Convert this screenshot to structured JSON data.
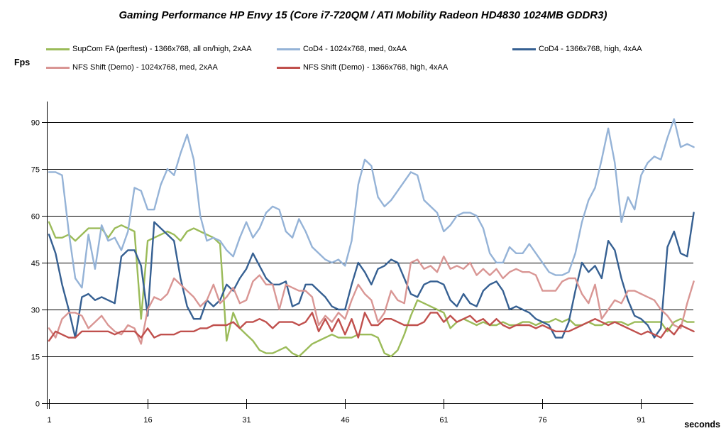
{
  "title": "Gaming Performance HP Envy 15 (Core i7-720QM / ATI Mobility Radeon HD4830 1024MB GDDR3)",
  "y_axis_label": "Fps",
  "x_axis_label": "seconds",
  "legend": {
    "entries": [
      {
        "label": "SupCom FA (perftest) - 1366x768, all on/high, 2xAA",
        "color": "#9BBB59"
      },
      {
        "label": "CoD4 - 1024x768,  med, 0xAA",
        "color": "#95B3D7"
      },
      {
        "label": "CoD4 - 1366x768,  high, 4xAA",
        "color": "#366092"
      },
      {
        "label": "NFS Shift (Demo) - 1024x768,  med, 2xAA",
        "color": "#D99694"
      },
      {
        "label": "NFS Shift (Demo) - 1366x768,  high, 4xAA",
        "color": "#C0504D"
      }
    ]
  },
  "chart_data": {
    "type": "line",
    "title": "Gaming Performance HP Envy 15 (Core i7-720QM / ATI Mobility Radeon HD4830 1024MB GDDR3)",
    "xlabel": "seconds",
    "ylabel": "Fps",
    "x_start": 1,
    "x_step": 1,
    "x_ticks": [
      1,
      16,
      31,
      46,
      61,
      76,
      91
    ],
    "y_ticks": [
      0,
      15,
      30,
      45,
      60,
      75,
      90
    ],
    "ylim": [
      0,
      96
    ],
    "grid": "horizontal",
    "legend_position": "top",
    "series": [
      {
        "name": "SupCom FA (perftest) - 1366x768, all on/high, 2xAA",
        "color": "#9BBB59",
        "values": [
          58,
          53,
          53,
          54,
          52,
          54,
          56,
          56,
          56,
          53,
          56,
          57,
          56,
          55,
          27,
          52,
          53,
          54,
          55,
          54,
          52,
          55,
          56,
          55,
          54,
          53,
          51,
          20,
          29,
          24,
          22,
          20,
          17,
          16,
          16,
          17,
          18,
          16,
          15,
          17,
          19,
          20,
          21,
          22,
          21,
          21,
          21,
          22,
          22,
          22,
          21,
          16,
          15,
          17,
          22,
          28,
          33,
          32,
          31,
          30,
          29,
          24,
          26,
          27,
          26,
          25,
          26,
          25,
          25,
          26,
          25,
          25,
          26,
          26,
          25,
          26,
          26,
          27,
          26,
          27,
          25,
          25,
          26,
          25,
          25,
          26,
          26,
          26,
          25,
          26,
          26,
          26,
          26,
          26,
          23,
          26,
          27,
          26,
          26
        ]
      },
      {
        "name": "CoD4 - 1024x768, med, 0xAA",
        "color": "#95B3D7",
        "values": [
          74,
          74,
          73,
          55,
          40,
          37,
          54,
          43,
          57,
          52,
          53,
          49,
          55,
          69,
          68,
          62,
          62,
          70,
          75,
          73,
          80,
          86,
          78,
          60,
          52,
          53,
          52,
          49,
          47,
          53,
          58,
          53,
          56,
          61,
          63,
          62,
          55,
          53,
          59,
          55,
          50,
          48,
          46,
          45,
          46,
          44,
          52,
          70,
          78,
          76,
          66,
          63,
          65,
          68,
          71,
          74,
          73,
          65,
          63,
          61,
          55,
          57,
          60,
          61,
          61,
          60,
          56,
          48,
          45,
          45,
          50,
          48,
          48,
          51,
          48,
          45,
          42,
          41,
          41,
          42,
          48,
          58,
          65,
          69,
          78,
          88,
          77,
          58,
          66,
          62,
          73,
          77,
          79,
          78,
          85,
          91,
          82,
          83,
          82
        ]
      },
      {
        "name": "CoD4 - 1366x768, high, 4xAA",
        "color": "#366092",
        "values": [
          54,
          48,
          38,
          30,
          21,
          34,
          35,
          33,
          34,
          33,
          32,
          47,
          49,
          49,
          44,
          28,
          58,
          56,
          54,
          52,
          40,
          31,
          27,
          27,
          33,
          31,
          33,
          38,
          36,
          40,
          43,
          48,
          44,
          40,
          38,
          38,
          39,
          31,
          32,
          38,
          38,
          36,
          34,
          31,
          30,
          30,
          38,
          45,
          42,
          38,
          43,
          44,
          46,
          45,
          40,
          35,
          34,
          38,
          39,
          39,
          38,
          33,
          31,
          35,
          32,
          31,
          36,
          38,
          39,
          36,
          30,
          31,
          30,
          29,
          27,
          26,
          25,
          21,
          21,
          26,
          36,
          45,
          42,
          44,
          40,
          52,
          49,
          40,
          33,
          28,
          27,
          25,
          21,
          24,
          50,
          55,
          48,
          47,
          61
        ]
      },
      {
        "name": "NFS Shift (Demo) - 1024x768, med, 2xAA",
        "color": "#D99694",
        "values": [
          24,
          21,
          27,
          29,
          29,
          28,
          24,
          26,
          28,
          25,
          23,
          22,
          25,
          24,
          19,
          30,
          34,
          33,
          35,
          40,
          38,
          36,
          34,
          31,
          33,
          38,
          32,
          34,
          37,
          32,
          33,
          39,
          41,
          38,
          38,
          30,
          38,
          37,
          36,
          36,
          34,
          25,
          28,
          26,
          29,
          27,
          33,
          38,
          35,
          33,
          26,
          29,
          36,
          33,
          32,
          45,
          46,
          43,
          44,
          42,
          47,
          43,
          44,
          43,
          45,
          41,
          43,
          41,
          43,
          40,
          42,
          43,
          42,
          42,
          41,
          36,
          36,
          36,
          39,
          40,
          40,
          35,
          32,
          38,
          27,
          30,
          33,
          32,
          36,
          36,
          35,
          34,
          33,
          30,
          28,
          25,
          24,
          32,
          39
        ]
      },
      {
        "name": "NFS Shift (Demo) - 1366x768, high, 4xAA",
        "color": "#C0504D",
        "values": [
          20,
          23,
          22,
          21,
          21,
          23,
          23,
          23,
          23,
          23,
          22,
          23,
          23,
          23,
          21,
          24,
          21,
          22,
          22,
          22,
          23,
          23,
          23,
          24,
          24,
          25,
          25,
          25,
          26,
          24,
          26,
          26,
          27,
          26,
          24,
          26,
          26,
          26,
          25,
          26,
          29,
          23,
          27,
          23,
          27,
          22,
          27,
          21,
          29,
          25,
          25,
          27,
          27,
          26,
          25,
          25,
          25,
          26,
          29,
          29,
          26,
          28,
          26,
          27,
          28,
          26,
          27,
          25,
          27,
          25,
          24,
          25,
          25,
          25,
          24,
          25,
          24,
          23,
          23,
          23,
          24,
          25,
          26,
          27,
          26,
          25,
          26,
          25,
          24,
          23,
          22,
          23,
          22,
          21,
          24,
          22,
          25,
          24,
          23
        ]
      }
    ]
  }
}
